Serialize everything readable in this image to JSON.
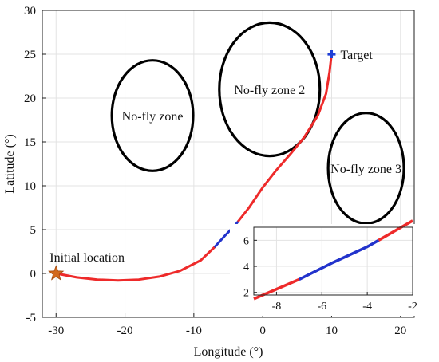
{
  "chart_data": {
    "type": "line",
    "xlabel": "Longitude (°)",
    "ylabel": "Latitude (°)",
    "xlim": [
      -32,
      22
    ],
    "ylim": [
      -5,
      30
    ],
    "xticks": [
      -30,
      -20,
      -10,
      0,
      10,
      20
    ],
    "yticks": [
      -5,
      0,
      5,
      10,
      15,
      20,
      25,
      30
    ],
    "grid": true,
    "colors": {
      "trajectory": "#ee2a2a",
      "highlight": "#2233cc",
      "start": "#d2691e",
      "target": "#1f3fd6",
      "zones": "#000000"
    },
    "trajectory": [
      [
        -30,
        0
      ],
      [
        -27,
        -0.45
      ],
      [
        -24,
        -0.7
      ],
      [
        -21,
        -0.8
      ],
      [
        -18,
        -0.7
      ],
      [
        -15,
        -0.35
      ],
      [
        -12,
        0.3
      ],
      [
        -9,
        1.5
      ],
      [
        -7,
        3
      ],
      [
        -5.5,
        4.3
      ],
      [
        -4,
        5.5
      ],
      [
        -2,
        7.5
      ],
      [
        0,
        9.8
      ],
      [
        2,
        11.8
      ],
      [
        4,
        13.6
      ],
      [
        6,
        15.5
      ],
      [
        8,
        18
      ],
      [
        9.2,
        20.5
      ],
      [
        9.7,
        23
      ],
      [
        10,
        25
      ]
    ],
    "highlight_segment": {
      "from_x": -7,
      "to_x": -3.5
    },
    "start": {
      "x": -30,
      "y": 0,
      "label": "Initial location"
    },
    "target": {
      "x": 10,
      "y": 25,
      "label": "Target"
    },
    "zones": [
      {
        "label": "No-fly zone",
        "cx": -16,
        "cy": 18,
        "rx": 5.9,
        "ry": 6.3
      },
      {
        "label": "No-fly zone 2",
        "cx": 1,
        "cy": 21,
        "rx": 7.3,
        "ry": 7.6
      },
      {
        "label": "No-fly zone 3",
        "cx": 15,
        "cy": 12,
        "rx": 5.5,
        "ry": 6.3
      }
    ],
    "inset": {
      "xlim": [
        -9,
        -2
      ],
      "ylim": [
        1.8,
        7
      ],
      "xticks": [
        -8,
        -6,
        -4,
        -2
      ],
      "yticks": [
        2,
        4,
        6
      ]
    }
  }
}
